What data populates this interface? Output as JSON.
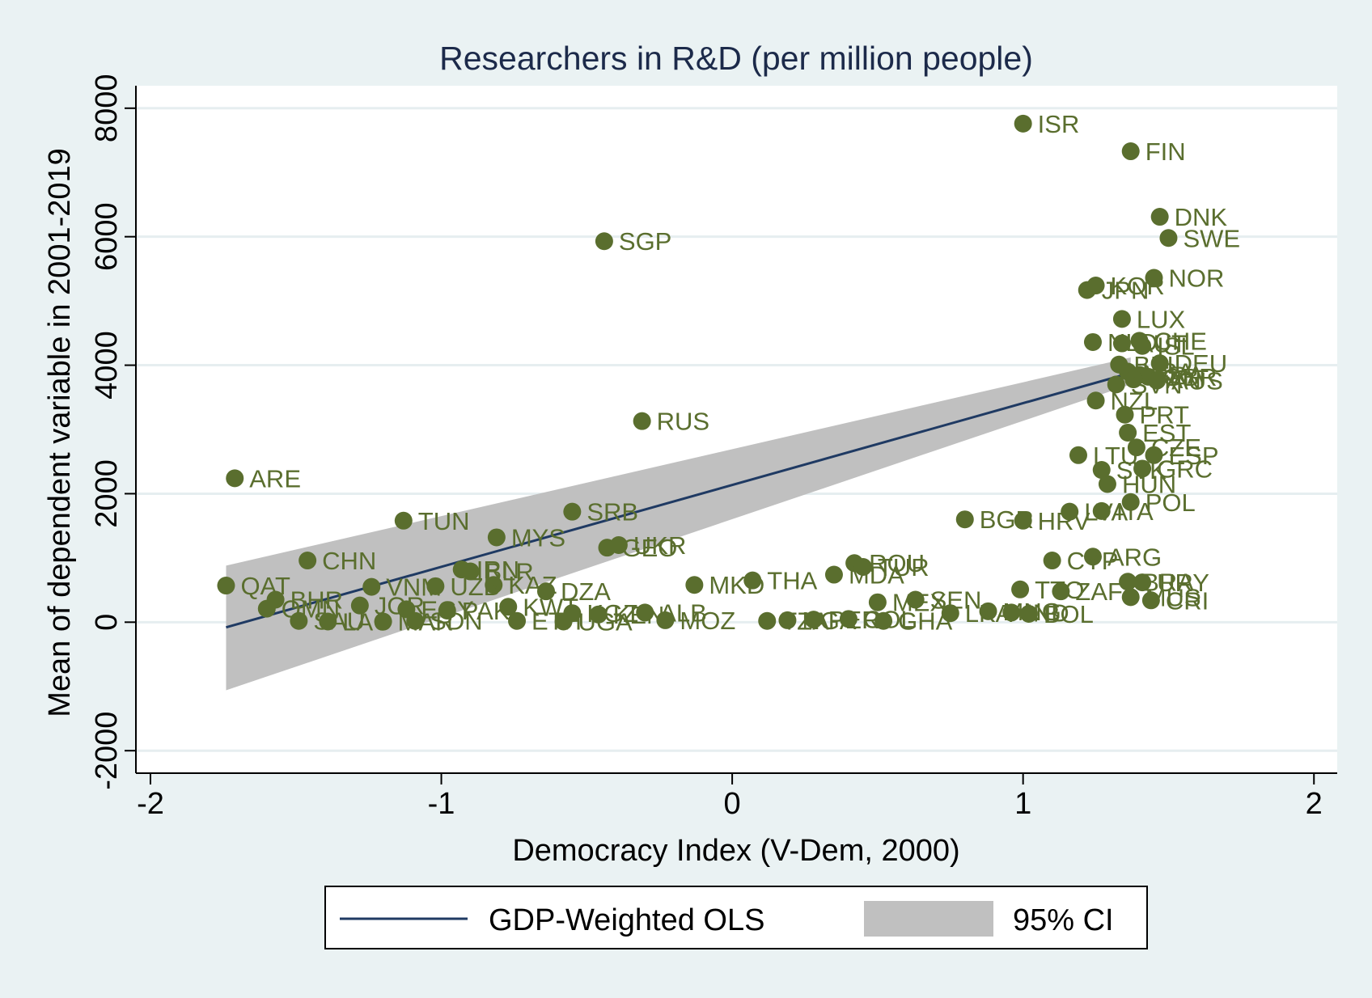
{
  "chart_data": {
    "type": "scatter",
    "title": "Researchers in R&D (per million people)",
    "xlabel": "Democracy Index (V-Dem, 2000)",
    "ylabel": "Mean of dependent variable in 2001-2019",
    "xlim": [
      -2.05,
      2.08
    ],
    "ylim": [
      -2350,
      8350
    ],
    "xticks": [
      -2,
      -1,
      0,
      1,
      2
    ],
    "yticks": [
      -2000,
      0,
      2000,
      4000,
      6000,
      8000
    ],
    "xtick_labels": [
      "-2",
      "-1",
      "0",
      "1",
      "2"
    ],
    "ytick_labels": [
      "-2000",
      "0",
      "2000",
      "4000",
      "6000",
      "8000"
    ],
    "grid": true,
    "legend_position": "bottom",
    "legend": [
      {
        "label": "GDP-Weighted OLS",
        "kind": "line",
        "color": "#1f3a63"
      },
      {
        "label": "95% CI",
        "kind": "band",
        "color": "#c0c0c0"
      }
    ],
    "colors": {
      "background": "#eaf2f3",
      "plot_area": "#ffffff",
      "points": "#5a6e2e",
      "labels": "#5a6e2e",
      "fit_line": "#1f3a63",
      "ci_band": "#c0c0c0",
      "title": "#1c2a4a",
      "grid": "#e6eef0"
    },
    "fit_line": {
      "x": [
        -1.74,
        1.37
      ],
      "y": [
        -80,
        3880
      ]
    },
    "ci_band": {
      "x": [
        -1.74,
        1.37
      ],
      "upper": [
        880,
        4120
      ],
      "lower": [
        -1060,
        3700
      ]
    },
    "points": [
      {
        "label": "ISR",
        "x": 1.0,
        "y": 7760
      },
      {
        "label": "FIN",
        "x": 1.37,
        "y": 7330
      },
      {
        "label": "DNK",
        "x": 1.47,
        "y": 6310
      },
      {
        "label": "SWE",
        "x": 1.5,
        "y": 5980
      },
      {
        "label": "SGP",
        "x": -0.44,
        "y": 5930
      },
      {
        "label": "NOR",
        "x": 1.45,
        "y": 5360
      },
      {
        "label": "KOR",
        "x": 1.25,
        "y": 5240
      },
      {
        "label": "JPN",
        "x": 1.22,
        "y": 5170
      },
      {
        "label": "LUX",
        "x": 1.34,
        "y": 4720
      },
      {
        "label": "CHE",
        "x": 1.4,
        "y": 4380
      },
      {
        "label": "NLD",
        "x": 1.24,
        "y": 4360
      },
      {
        "label": "AUT",
        "x": 1.34,
        "y": 4340
      },
      {
        "label": "ISL",
        "x": 1.41,
        "y": 4300
      },
      {
        "label": "DEU",
        "x": 1.47,
        "y": 4030
      },
      {
        "label": "BEL",
        "x": 1.33,
        "y": 4010
      },
      {
        "label": "USA",
        "x": 1.36,
        "y": 3900
      },
      {
        "label": "FRA",
        "x": 1.4,
        "y": 3850
      },
      {
        "label": "GBR",
        "x": 1.43,
        "y": 3820
      },
      {
        "label": "CAN",
        "x": 1.38,
        "y": 3780
      },
      {
        "label": "AUS",
        "x": 1.46,
        "y": 3760
      },
      {
        "label": "SVN",
        "x": 1.32,
        "y": 3700
      },
      {
        "label": "NZL",
        "x": 1.25,
        "y": 3450
      },
      {
        "label": "RUS",
        "x": -0.31,
        "y": 3130
      },
      {
        "label": "PRT",
        "x": 1.35,
        "y": 3230
      },
      {
        "label": "EST",
        "x": 1.36,
        "y": 2950
      },
      {
        "label": "CZE",
        "x": 1.39,
        "y": 2720
      },
      {
        "label": "ESP",
        "x": 1.45,
        "y": 2600
      },
      {
        "label": "LTU",
        "x": 1.19,
        "y": 2600
      },
      {
        "label": "SVK",
        "x": 1.27,
        "y": 2370
      },
      {
        "label": "GRC",
        "x": 1.41,
        "y": 2390
      },
      {
        "label": "ARE",
        "x": -1.71,
        "y": 2240
      },
      {
        "label": "HUN",
        "x": 1.29,
        "y": 2150
      },
      {
        "label": "POL",
        "x": 1.37,
        "y": 1870
      },
      {
        "label": "LVA",
        "x": 1.16,
        "y": 1720
      },
      {
        "label": "ITA",
        "x": 1.27,
        "y": 1730
      },
      {
        "label": "SRB",
        "x": -0.55,
        "y": 1720
      },
      {
        "label": "BGR",
        "x": 0.8,
        "y": 1600
      },
      {
        "label": "HRV",
        "x": 1.0,
        "y": 1580
      },
      {
        "label": "TUN",
        "x": -1.13,
        "y": 1580
      },
      {
        "label": "MYS",
        "x": -0.81,
        "y": 1320
      },
      {
        "label": "UKR",
        "x": -0.39,
        "y": 1200
      },
      {
        "label": "GEO",
        "x": -0.43,
        "y": 1160
      },
      {
        "label": "ARG",
        "x": 1.24,
        "y": 1020
      },
      {
        "label": "CYP",
        "x": 1.1,
        "y": 960
      },
      {
        "label": "CHN",
        "x": -1.46,
        "y": 960
      },
      {
        "label": "ROU",
        "x": 0.42,
        "y": 920
      },
      {
        "label": "TUR",
        "x": 0.45,
        "y": 860
      },
      {
        "label": "IRN",
        "x": -0.93,
        "y": 820
      },
      {
        "label": "BLR",
        "x": -0.9,
        "y": 790
      },
      {
        "label": "MDA",
        "x": 0.35,
        "y": 740
      },
      {
        "label": "THA",
        "x": 0.07,
        "y": 650
      },
      {
        "label": "URY",
        "x": 1.41,
        "y": 620
      },
      {
        "label": "BRA",
        "x": 1.36,
        "y": 630
      },
      {
        "label": "MKD",
        "x": -0.13,
        "y": 580
      },
      {
        "label": "KAZ",
        "x": -0.82,
        "y": 580
      },
      {
        "label": "QAT",
        "x": -1.74,
        "y": 570
      },
      {
        "label": "VNM",
        "x": -1.24,
        "y": 550
      },
      {
        "label": "UZB",
        "x": -1.02,
        "y": 560
      },
      {
        "label": "TTO",
        "x": 0.99,
        "y": 510
      },
      {
        "label": "DZA",
        "x": -0.64,
        "y": 480
      },
      {
        "label": "ZAF",
        "x": 1.13,
        "y": 480
      },
      {
        "label": "MUS",
        "x": 1.37,
        "y": 390
      },
      {
        "label": "CRI",
        "x": 1.44,
        "y": 340
      },
      {
        "label": "SEN",
        "x": 0.63,
        "y": 350
      },
      {
        "label": "MEX",
        "x": 0.5,
        "y": 310
      },
      {
        "label": "BHR",
        "x": -1.57,
        "y": 350
      },
      {
        "label": "JOR",
        "x": -1.28,
        "y": 260
      },
      {
        "label": "KWT",
        "x": -0.77,
        "y": 240
      },
      {
        "label": "OMN",
        "x": -1.6,
        "y": 210
      },
      {
        "label": "EGY",
        "x": -1.12,
        "y": 200
      },
      {
        "label": "PAK",
        "x": -0.98,
        "y": 180
      },
      {
        "label": "KGZ",
        "x": -0.55,
        "y": 140
      },
      {
        "label": "MNG",
        "x": 0.88,
        "y": 170
      },
      {
        "label": "ALB",
        "x": -0.3,
        "y": 150
      },
      {
        "label": "KEN",
        "x": -0.46,
        "y": 120
      },
      {
        "label": "IND",
        "x": 0.96,
        "y": 150
      },
      {
        "label": "LKA",
        "x": 0.75,
        "y": 140
      },
      {
        "label": "BOL",
        "x": 1.02,
        "y": 130
      },
      {
        "label": "MOZ",
        "x": -0.23,
        "y": 30
      },
      {
        "label": "GHA",
        "x": 0.52,
        "y": 20
      },
      {
        "label": "SAU",
        "x": -1.49,
        "y": 20
      },
      {
        "label": "LAO",
        "x": -1.39,
        "y": 10
      },
      {
        "label": "MAR",
        "x": -1.2,
        "y": 10
      },
      {
        "label": "SDN",
        "x": -1.09,
        "y": 20
      },
      {
        "label": "ETH",
        "x": -0.74,
        "y": 20
      },
      {
        "label": "UGA",
        "x": -0.58,
        "y": 10
      },
      {
        "label": "TZA",
        "x": 0.12,
        "y": 20
      },
      {
        "label": "NGA",
        "x": 0.19,
        "y": 30
      },
      {
        "label": "PER",
        "x": 0.28,
        "y": 40
      },
      {
        "label": "COL",
        "x": 0.4,
        "y": 50
      }
    ]
  }
}
